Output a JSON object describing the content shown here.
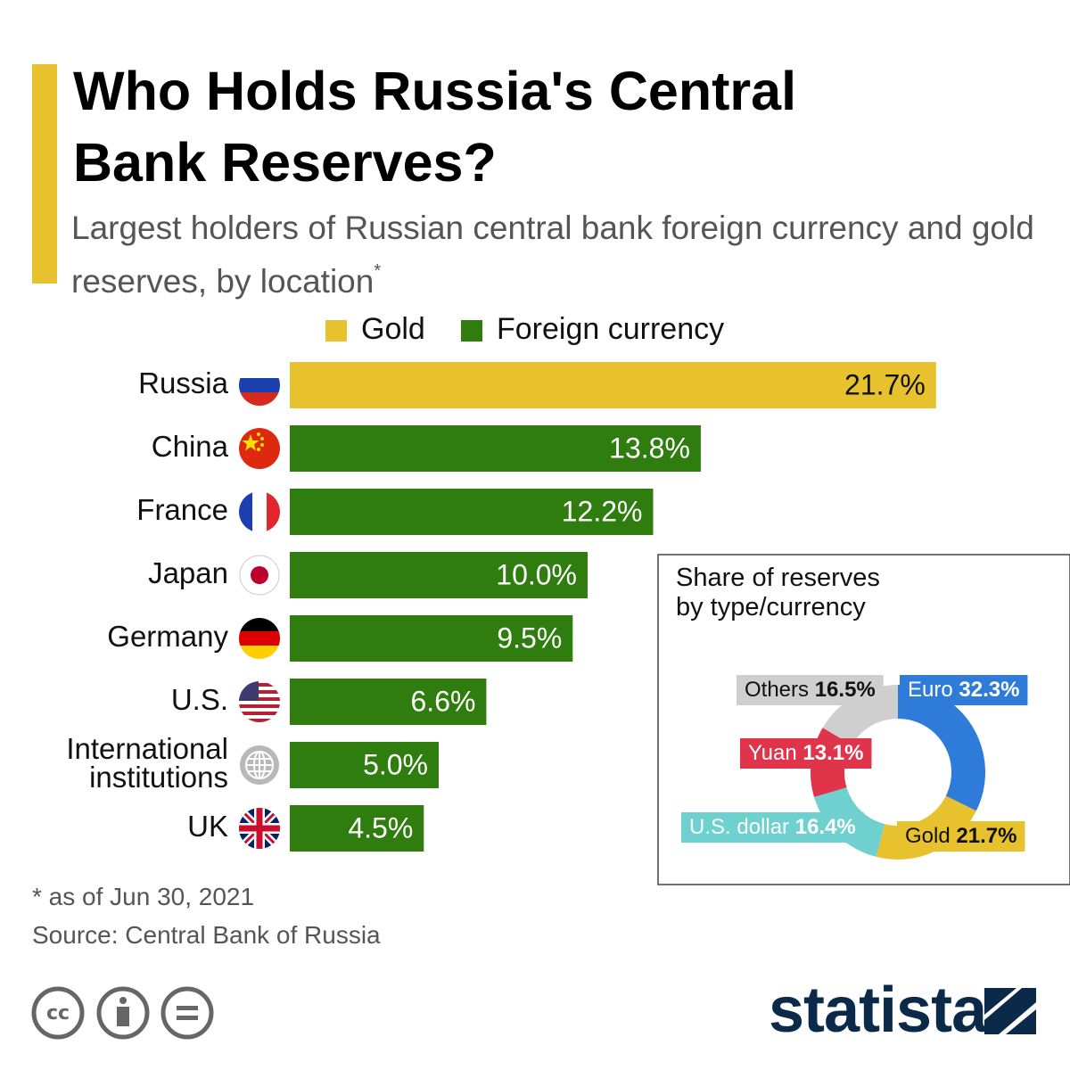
{
  "header": {
    "title": "Who Holds Russia's Central Bank Reserves?",
    "subtitle": "Largest holders of Russian central bank foreign currency and gold reserves, by location",
    "subtitle_marker": "*"
  },
  "chart_data": [
    {
      "type": "bar",
      "orientation": "horizontal",
      "categories": [
        "Russia",
        "China",
        "France",
        "Japan",
        "Germany",
        "U.S.",
        "International institutions",
        "UK"
      ],
      "series": [
        {
          "name": "Gold",
          "color": "#e8c22e",
          "label_color": "#111111",
          "values": [
            21.7,
            null,
            null,
            null,
            null,
            null,
            null,
            null
          ],
          "value_labels": [
            "21.7%",
            null,
            null,
            null,
            null,
            null,
            null,
            null
          ]
        },
        {
          "name": "Foreign currency",
          "color": "#2e7d0e",
          "label_color": "#ffffff",
          "values": [
            null,
            13.8,
            12.2,
            10.0,
            9.5,
            6.6,
            5.0,
            4.5
          ],
          "value_labels": [
            null,
            "13.8%",
            "12.2%",
            "10.0%",
            "9.5%",
            "6.6%",
            "5.0%",
            "4.5%"
          ]
        }
      ],
      "legend": "top"
    },
    {
      "type": "donut",
      "title": "Share of reserves by type/currency",
      "categories": [
        "Euro",
        "Gold",
        "U.S. dollar",
        "Yuan",
        "Others"
      ],
      "values": [
        32.3,
        21.7,
        16.4,
        13.1,
        16.5
      ],
      "value_labels": [
        "32.3%",
        "21.7%",
        "16.4%",
        "13.1%",
        "16.5%"
      ],
      "colors": [
        "#2f7bd9",
        "#e8c22e",
        "#6fd0d0",
        "#e0344a",
        "#cfcfcf"
      ],
      "label_colors": [
        "#ffffff",
        "#111111",
        "#ffffff",
        "#ffffff",
        "#111111"
      ]
    }
  ],
  "footer": {
    "note": "* as of Jun 30, 2021",
    "source": "Source: Central Bank of Russia",
    "brand": "statista"
  }
}
